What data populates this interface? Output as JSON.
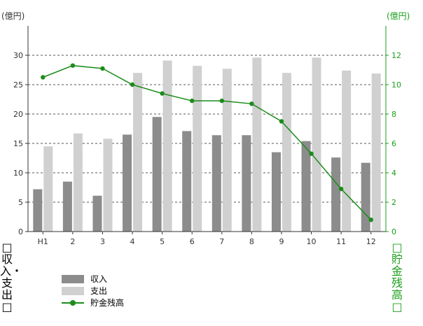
{
  "chart_data": {
    "type": "bar",
    "categories": [
      "H1",
      "2",
      "3",
      "4",
      "5",
      "6",
      "7",
      "8",
      "9",
      "10",
      "11",
      "12"
    ],
    "series": [
      {
        "name": "収入",
        "type": "bar",
        "axis": "left",
        "color": "#8c8c8c",
        "values": [
          7.2,
          8.5,
          6.1,
          16.5,
          19.5,
          17.1,
          16.4,
          16.4,
          13.5,
          15.4,
          12.6,
          11.7
        ]
      },
      {
        "name": "支出",
        "type": "bar",
        "axis": "left",
        "color": "#d0d0d0",
        "values": [
          14.5,
          16.7,
          15.8,
          27.0,
          29.1,
          28.2,
          27.7,
          29.6,
          27.0,
          29.6,
          27.4,
          26.9
        ]
      },
      {
        "name": "貯金残高",
        "type": "line",
        "axis": "right",
        "color": "#1a8c1a",
        "values": [
          10.5,
          11.3,
          11.1,
          10.0,
          9.4,
          8.9,
          8.9,
          8.7,
          7.5,
          5.3,
          2.9,
          0.8
        ]
      }
    ],
    "y_left": {
      "unit": "(億円)",
      "label": "□収入・支出□",
      "ticks": [
        0,
        5,
        10,
        15,
        20,
        25,
        30
      ],
      "ylim": [
        0,
        35
      ]
    },
    "y_right": {
      "unit": "(億円)",
      "label": "□貯金残高□",
      "ticks": [
        0,
        2,
        4,
        6,
        8,
        10,
        12
      ],
      "ylim": [
        0,
        14
      ],
      "color": "#1aa01a"
    },
    "grid": true,
    "legend_placement": "bottom-left"
  }
}
